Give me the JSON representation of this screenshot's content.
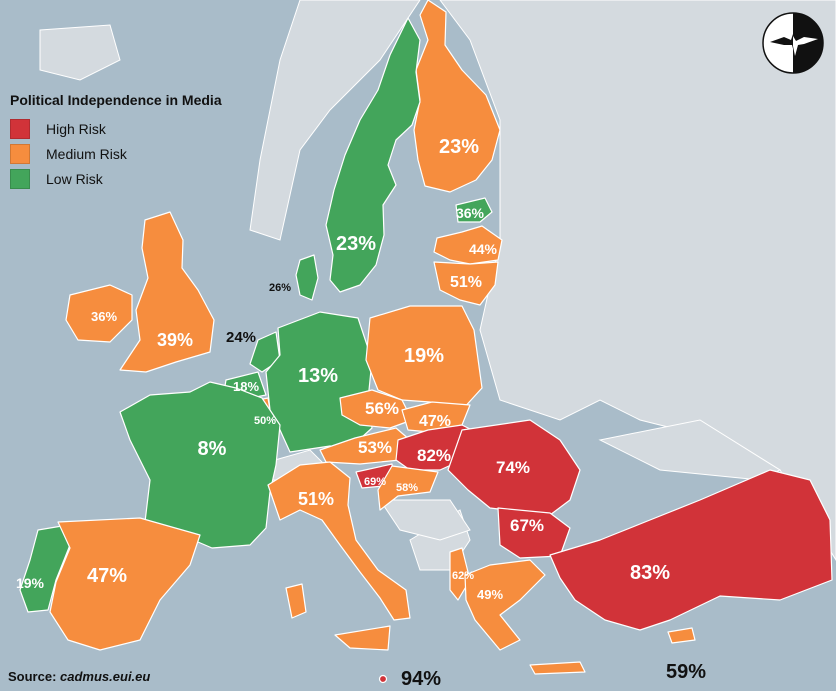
{
  "legend": {
    "title": "Political Independence in Media",
    "items": [
      {
        "label": "High Risk",
        "color": "#d13339"
      },
      {
        "label": "Medium Risk",
        "color": "#f68d3e"
      },
      {
        "label": "Low Risk",
        "color": "#43a55b"
      }
    ]
  },
  "source": {
    "prefix": "Source:",
    "site": "cadmus.eui.eu"
  },
  "colors": {
    "sea": "#a9bcc9",
    "non_member": "#d4dadf",
    "high": "#d13339",
    "medium": "#f68d3e",
    "low": "#43a55b"
  },
  "logo_icon": "bird-silhouette-icon",
  "regions": {
    "finland": {
      "value": "23%",
      "risk": "medium"
    },
    "sweden": {
      "value": "23%",
      "risk": "low"
    },
    "estonia": {
      "value": "36%",
      "risk": "low"
    },
    "latvia": {
      "value": "44%",
      "risk": "medium"
    },
    "lithuania": {
      "value": "51%",
      "risk": "medium"
    },
    "denmark": {
      "value": "26%",
      "risk": "low"
    },
    "ireland": {
      "value": "36%",
      "risk": "medium"
    },
    "uk": {
      "value": "39%",
      "risk": "medium"
    },
    "netherlands": {
      "value": "24%",
      "risk": "low"
    },
    "belgium": {
      "value": "18%",
      "risk": "low"
    },
    "luxembourg": {
      "value": "50%",
      "risk": "medium"
    },
    "germany": {
      "value": "13%",
      "risk": "low"
    },
    "poland": {
      "value": "19%",
      "risk": "medium"
    },
    "czechia": {
      "value": "56%",
      "risk": "medium"
    },
    "slovakia": {
      "value": "47%",
      "risk": "medium"
    },
    "austria": {
      "value": "53%",
      "risk": "medium"
    },
    "hungary": {
      "value": "82%",
      "risk": "high"
    },
    "romania": {
      "value": "74%",
      "risk": "high"
    },
    "slovenia": {
      "value": "69%",
      "risk": "high"
    },
    "croatia": {
      "value": "58%",
      "risk": "medium"
    },
    "france": {
      "value": "8%",
      "risk": "low"
    },
    "italy": {
      "value": "51%",
      "risk": "medium"
    },
    "bulgaria": {
      "value": "67%",
      "risk": "high"
    },
    "turkey": {
      "value": "83%",
      "risk": "high"
    },
    "portugal": {
      "value": "19%",
      "risk": "low"
    },
    "spain": {
      "value": "47%",
      "risk": "medium"
    },
    "albania": {
      "value": "62%",
      "risk": "medium"
    },
    "greece": {
      "value": "49%",
      "risk": "medium"
    },
    "malta": {
      "value": "94%",
      "risk": "high"
    },
    "cyprus": {
      "value": "59%",
      "risk": "medium"
    }
  }
}
